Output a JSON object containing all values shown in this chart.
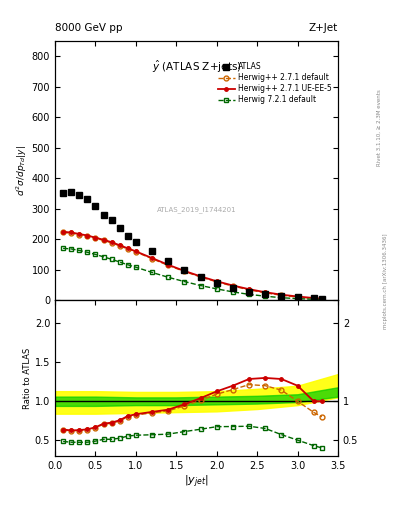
{
  "title_top": "8000 GeV pp",
  "title_right": "Z+Jet",
  "main_title": "$\\hat{y}$ (ATLAS Z+jets)",
  "xlabel": "$|y_{jet}|$",
  "ylabel_main": "$d^{2}\\sigma/dp_{Td}|y|$",
  "ylabel_ratio": "Ratio to ATLAS",
  "watermark": "ATLAS_2019_I1744201",
  "right_label_top": "Rivet 3.1.10, ≥ 2.3M events",
  "right_label_bottom": "mcplots.cern.ch [arXiv:1306.3436]",
  "ylim_main": [
    0,
    850
  ],
  "ylim_ratio": [
    0.3,
    2.3
  ],
  "xlim": [
    0.0,
    3.5
  ],
  "atlas_x": [
    0.1,
    0.2,
    0.3,
    0.4,
    0.5,
    0.6,
    0.7,
    0.8,
    0.9,
    1.0,
    1.2,
    1.4,
    1.6,
    1.8,
    2.0,
    2.2,
    2.4,
    2.6,
    2.8,
    3.0,
    3.2,
    3.3
  ],
  "atlas_y": [
    352,
    355,
    345,
    332,
    308,
    278,
    262,
    238,
    210,
    192,
    160,
    130,
    100,
    75,
    55,
    40,
    28,
    20,
    14,
    10,
    7,
    5
  ],
  "herwig271_x": [
    0.1,
    0.2,
    0.3,
    0.4,
    0.5,
    0.6,
    0.7,
    0.8,
    0.9,
    1.0,
    1.2,
    1.4,
    1.6,
    1.8,
    2.0,
    2.2,
    2.4,
    2.6,
    2.8,
    3.0,
    3.2,
    3.3
  ],
  "herwig271_y": [
    222,
    220,
    215,
    210,
    203,
    196,
    188,
    178,
    168,
    158,
    136,
    114,
    94,
    76,
    60,
    46,
    34,
    24,
    16,
    10,
    6,
    4
  ],
  "herwig271ue_x": [
    0.1,
    0.2,
    0.3,
    0.4,
    0.5,
    0.6,
    0.7,
    0.8,
    0.9,
    1.0,
    1.2,
    1.4,
    1.6,
    1.8,
    2.0,
    2.2,
    2.4,
    2.6,
    2.8,
    3.0,
    3.2,
    3.3
  ],
  "herwig271ue_y": [
    224,
    222,
    217,
    212,
    205,
    198,
    190,
    180,
    170,
    160,
    138,
    116,
    96,
    78,
    62,
    48,
    36,
    26,
    18,
    12,
    7,
    5
  ],
  "herwig721_x": [
    0.1,
    0.2,
    0.3,
    0.4,
    0.5,
    0.6,
    0.7,
    0.8,
    0.9,
    1.0,
    1.2,
    1.4,
    1.6,
    1.8,
    2.0,
    2.2,
    2.4,
    2.6,
    2.8,
    3.0,
    3.2,
    3.3
  ],
  "herwig721_y": [
    170,
    168,
    163,
    157,
    150,
    142,
    134,
    125,
    116,
    108,
    91,
    75,
    61,
    48,
    37,
    27,
    19,
    13,
    8,
    5,
    3,
    2
  ],
  "ratio_herwig271_y": [
    0.63,
    0.62,
    0.623,
    0.632,
    0.659,
    0.705,
    0.717,
    0.748,
    0.8,
    0.823,
    0.85,
    0.877,
    0.94,
    1.013,
    1.091,
    1.15,
    1.214,
    1.2,
    1.143,
    1.0,
    0.857,
    0.8
  ],
  "ratio_herwig271ue_y": [
    0.636,
    0.625,
    0.629,
    0.639,
    0.665,
    0.712,
    0.725,
    0.756,
    0.81,
    0.833,
    0.863,
    0.892,
    0.96,
    1.04,
    1.127,
    1.2,
    1.286,
    1.3,
    1.286,
    1.2,
    1.0,
    1.0
  ],
  "ratio_herwig721_y": [
    0.483,
    0.473,
    0.472,
    0.473,
    0.487,
    0.511,
    0.511,
    0.525,
    0.552,
    0.563,
    0.569,
    0.577,
    0.61,
    0.64,
    0.673,
    0.675,
    0.679,
    0.65,
    0.571,
    0.5,
    0.429,
    0.4
  ],
  "band_x": [
    0.0,
    0.5,
    1.0,
    1.5,
    2.0,
    2.5,
    3.0,
    3.5
  ],
  "band_yellow_low": [
    0.84,
    0.84,
    0.85,
    0.86,
    0.87,
    0.9,
    0.95,
    1.05
  ],
  "band_yellow_high": [
    1.13,
    1.13,
    1.12,
    1.12,
    1.13,
    1.16,
    1.2,
    1.35
  ],
  "band_green_low": [
    0.94,
    0.94,
    0.95,
    0.95,
    0.96,
    0.97,
    0.99,
    1.06
  ],
  "band_green_high": [
    1.06,
    1.06,
    1.05,
    1.05,
    1.06,
    1.07,
    1.09,
    1.18
  ],
  "yticks_main": [
    0,
    100,
    200,
    300,
    400,
    500,
    600,
    700,
    800
  ],
  "yticks_ratio": [
    0.5,
    1.0,
    1.5,
    2.0
  ],
  "colors": {
    "atlas": "#000000",
    "herwig271": "#cc6600",
    "herwig271ue": "#cc0000",
    "herwig721": "#006600",
    "band_yellow": "#ffff00",
    "band_green": "#00cc00"
  }
}
